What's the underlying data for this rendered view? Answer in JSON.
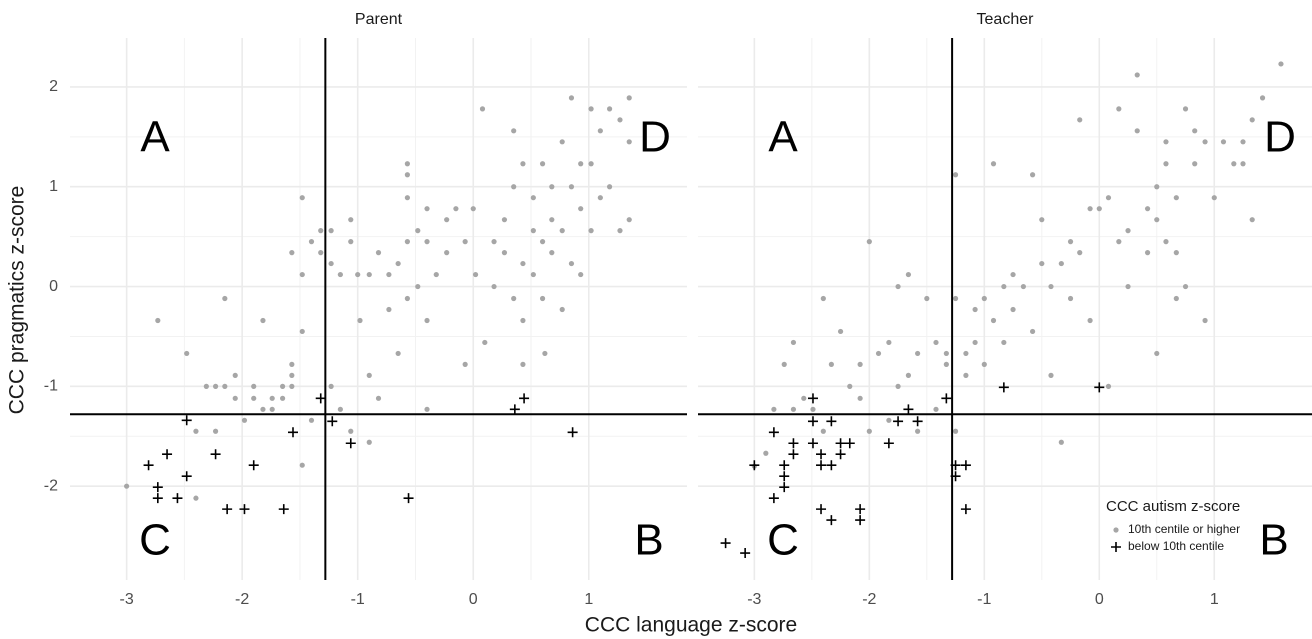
{
  "chart_data": {
    "type": "scatter",
    "xlabel": "CCC language z-score",
    "ylabel": "CCC pragmatics z-score",
    "xlim": [
      -3.49,
      1.85
    ],
    "ylim": [
      -2.94,
      2.49
    ],
    "xticks": [
      -3,
      -2,
      -1,
      0,
      1
    ],
    "yticks": [
      -2,
      -1,
      0,
      1,
      2
    ],
    "grid": true,
    "reference_lines": {
      "x": -1.28,
      "y": -1.28
    },
    "legend_title": "CCC autism z-score",
    "legend_position": "bottom-right",
    "series": [
      {
        "name": "10th centile or higher",
        "color": "#a6a6a6",
        "marker": "dot"
      },
      {
        "name": "below 10th centile",
        "color": "#000000",
        "marker": "plus"
      }
    ],
    "panels": [
      {
        "title": "Parent",
        "quadrant_labels": {
          "top-left": "A",
          "bottom-right": "B",
          "bottom-left": "C",
          "top-right": "D"
        },
        "points": [
          {
            "x": [
              -3.0,
              -2.73,
              -2.48,
              -2.4,
              -2.4,
              -2.31,
              -2.23,
              -2.23,
              -2.15,
              -2.15,
              -2.06,
              -2.06,
              -1.98,
              -1.9,
              -1.9,
              -1.82,
              -1.82,
              -1.74,
              -1.74,
              -1.65,
              -1.65,
              -1.57,
              -1.57,
              -1.57,
              -1.57,
              -1.48,
              -1.48,
              -1.48,
              -1.48,
              -1.4,
              -1.4,
              -1.32,
              -1.32,
              -1.23,
              -1.23,
              -1.23,
              -1.15,
              -1.15,
              -1.06,
              -1.06,
              -1.06,
              -1.0,
              -0.98,
              -0.9,
              -0.9,
              -0.9,
              -0.82,
              -0.82,
              -0.73,
              -0.73,
              -0.65,
              -0.65,
              -0.57,
              -0.57,
              -0.57,
              -0.57,
              -0.57,
              -0.48,
              -0.48,
              -0.4,
              -0.4,
              -0.4,
              -0.4,
              -0.32,
              -0.23,
              -0.23,
              -0.15,
              -0.07,
              -0.07,
              0.0,
              0.02,
              0.08,
              0.1,
              0.18,
              0.18,
              0.27,
              0.27,
              0.35,
              0.35,
              0.35,
              0.43,
              0.43,
              0.43,
              0.52,
              0.52,
              0.52,
              0.6,
              0.6,
              0.6,
              0.68,
              0.68,
              0.68,
              0.77,
              0.77,
              0.77,
              0.85,
              0.85,
              0.85,
              0.93,
              0.93,
              0.93,
              1.02,
              1.02,
              1.02,
              1.1,
              1.1,
              1.18,
              1.18,
              1.27,
              1.27,
              1.35,
              1.35,
              1.35,
              0.62,
              0.43
            ],
            "y": [
              -2.0,
              -0.34,
              -0.67,
              -1.45,
              -2.12,
              -1.0,
              -1.0,
              -1.45,
              -1.0,
              -0.12,
              -1.12,
              -0.89,
              -1.34,
              -1.0,
              -1.12,
              -1.23,
              -0.34,
              -1.12,
              -1.23,
              -1.0,
              -1.12,
              -0.78,
              -1.0,
              -0.89,
              0.34,
              -0.45,
              -1.79,
              0.12,
              0.89,
              0.45,
              -1.34,
              0.56,
              0.34,
              0.56,
              0.23,
              -1.0,
              0.12,
              -1.23,
              0.67,
              0.45,
              -1.45,
              0.12,
              -0.34,
              0.12,
              -0.89,
              -1.56,
              0.34,
              -1.12,
              0.12,
              -0.23,
              0.23,
              -0.67,
              1.23,
              1.12,
              0.89,
              0.45,
              -0.12,
              0.56,
              0.0,
              0.78,
              0.45,
              -0.34,
              -1.23,
              0.12,
              0.67,
              0.34,
              0.78,
              -0.78,
              0.45,
              0.78,
              0.12,
              1.78,
              -0.56,
              0.45,
              0.0,
              0.67,
              0.34,
              1.0,
              -0.12,
              1.56,
              1.23,
              0.23,
              -0.34,
              0.89,
              0.56,
              0.12,
              1.23,
              0.45,
              -0.12,
              1.0,
              0.67,
              0.34,
              1.45,
              0.56,
              -0.23,
              1.89,
              1.0,
              0.23,
              1.23,
              0.78,
              0.12,
              1.78,
              1.23,
              0.56,
              1.56,
              0.89,
              1.78,
              1.0,
              1.67,
              0.56,
              1.89,
              1.45,
              0.67,
              -0.67,
              -0.78
            ]
          },
          {
            "x": [
              -1.32,
              -1.22,
              -1.06,
              -2.48,
              -2.81,
              -2.65,
              -2.73,
              -2.73,
              -2.56,
              -2.23,
              -2.13,
              -1.98,
              -1.9,
              -1.64,
              -1.56,
              0.44,
              0.36,
              0.86,
              -0.56,
              -2.48
            ],
            "y": [
              -1.12,
              -1.35,
              -1.57,
              -1.34,
              -1.79,
              -1.68,
              -2.01,
              -2.12,
              -2.12,
              -1.68,
              -2.23,
              -2.23,
              -1.79,
              -2.23,
              -1.46,
              -1.12,
              -1.23,
              -1.46,
              -2.12,
              -1.9
            ]
          }
        ]
      },
      {
        "title": "Teacher",
        "quadrant_labels": {
          "top-left": "A",
          "bottom-right": "B",
          "bottom-left": "C",
          "top-right": "D"
        },
        "points": [
          {
            "x": [
              -3.0,
              -2.9,
              -2.83,
              -2.74,
              -2.66,
              -2.66,
              -2.57,
              -2.49,
              -2.4,
              -2.4,
              -2.33,
              -2.25,
              -2.17,
              -2.08,
              -2.08,
              -2.0,
              -2.0,
              -1.92,
              -1.83,
              -1.83,
              -1.75,
              -1.75,
              -1.66,
              -1.66,
              -1.58,
              -1.58,
              -1.5,
              -1.42,
              -1.42,
              -1.33,
              -1.33,
              -1.25,
              -1.25,
              -1.25,
              -1.16,
              -1.16,
              -1.08,
              -1.08,
              -1.0,
              -1.0,
              -0.92,
              -0.92,
              -0.83,
              -0.83,
              -0.75,
              -0.75,
              -0.66,
              -0.58,
              -0.58,
              -0.5,
              -0.5,
              -0.42,
              -0.42,
              -0.33,
              -0.33,
              -0.25,
              -0.25,
              -0.17,
              -0.17,
              -0.08,
              -0.08,
              0.0,
              0.08,
              0.08,
              0.17,
              0.17,
              0.25,
              0.33,
              0.33,
              0.42,
              0.5,
              0.5,
              0.58,
              0.58,
              0.67,
              0.67,
              0.75,
              0.75,
              0.83,
              0.83,
              0.92,
              0.92,
              1.0,
              1.08,
              1.17,
              1.25,
              1.25,
              1.33,
              1.33,
              1.42,
              1.58,
              0.5,
              0.58,
              0.67,
              0.25,
              0.42
            ],
            "y": [
              -1.8,
              -1.67,
              -1.23,
              -0.78,
              -1.23,
              -0.56,
              -1.12,
              -1.23,
              -0.12,
              -1.45,
              -0.78,
              -0.45,
              -1.0,
              -0.78,
              -1.12,
              0.45,
              -1.45,
              -0.67,
              -0.56,
              -1.34,
              0.0,
              -1.0,
              0.12,
              -0.89,
              -0.67,
              -1.45,
              -0.12,
              -0.56,
              -1.23,
              -0.78,
              -0.67,
              1.12,
              -0.12,
              -1.45,
              -0.67,
              -0.89,
              -0.23,
              -0.56,
              -0.12,
              -0.78,
              1.23,
              -0.34,
              -0.56,
              0.0,
              0.12,
              -0.23,
              0.0,
              1.12,
              -0.45,
              0.67,
              0.23,
              0.0,
              -0.89,
              0.23,
              -1.56,
              0.45,
              -0.12,
              1.67,
              0.34,
              0.78,
              -0.34,
              0.78,
              0.89,
              -1.0,
              1.78,
              0.45,
              0.0,
              2.12,
              1.56,
              0.34,
              1.0,
              -0.67,
              1.45,
              1.23,
              0.89,
              0.34,
              1.78,
              0.0,
              1.56,
              1.23,
              1.45,
              -0.34,
              0.89,
              1.45,
              1.23,
              1.45,
              1.23,
              1.67,
              0.67,
              1.89,
              2.23,
              0.67,
              0.45,
              -0.12,
              0.56,
              0.78
            ]
          },
          {
            "x": [
              -3.0,
              -2.83,
              -2.74,
              -2.66,
              -2.66,
              -2.74,
              -2.74,
              -2.83,
              -3.25,
              -3.08,
              -2.49,
              -2.49,
              -2.49,
              -2.33,
              -2.42,
              -2.42,
              -2.33,
              -2.25,
              -2.25,
              -2.17,
              -2.42,
              -2.33,
              -2.08,
              -2.08,
              -1.83,
              -1.75,
              -1.66,
              -1.58,
              -1.33,
              -1.25,
              -1.16,
              -1.25,
              -0.83,
              0.0,
              -1.16
            ],
            "y": [
              -1.79,
              -1.46,
              -1.79,
              -1.57,
              -1.68,
              -1.9,
              -2.01,
              -2.12,
              -2.57,
              -2.67,
              -1.12,
              -1.35,
              -1.57,
              -1.35,
              -1.68,
              -1.79,
              -1.79,
              -1.57,
              -1.68,
              -1.57,
              -2.23,
              -2.34,
              -2.23,
              -2.34,
              -1.57,
              -1.35,
              -1.23,
              -1.35,
              -1.12,
              -1.79,
              -1.79,
              -1.9,
              -1.01,
              -1.01,
              -2.23
            ]
          }
        ]
      }
    ]
  }
}
